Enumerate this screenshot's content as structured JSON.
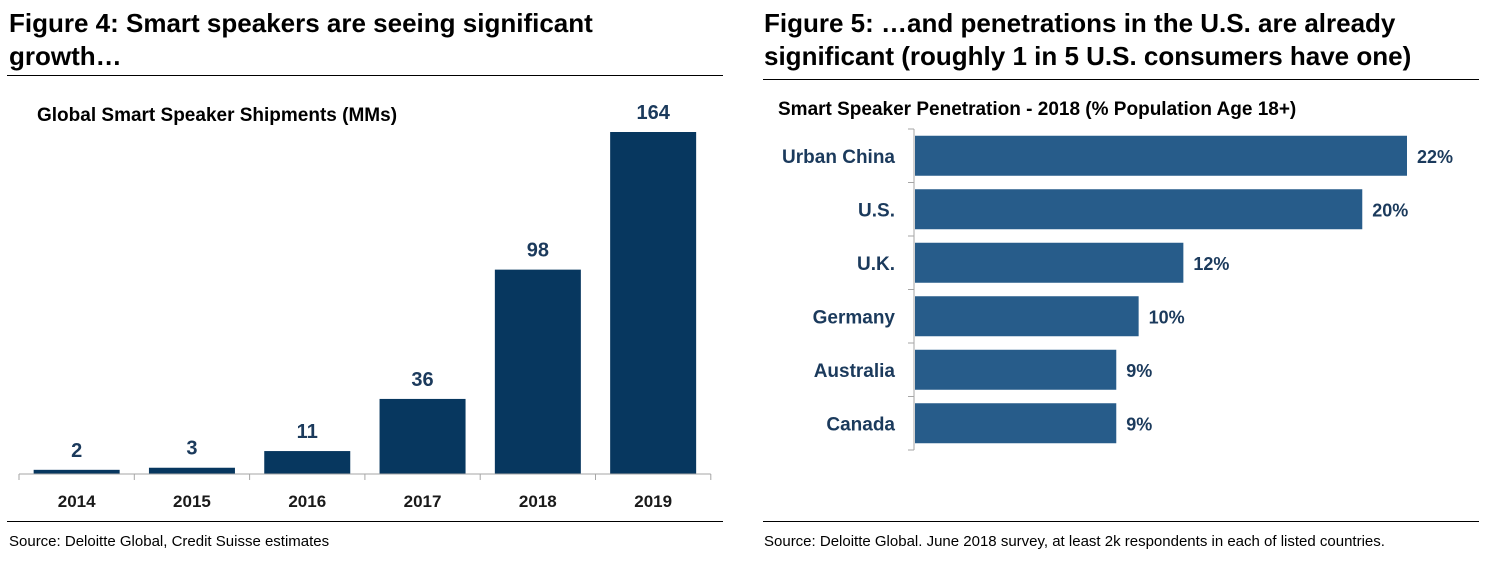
{
  "figure4": {
    "title_line1": "Figure 4: Smart speakers are seeing significant",
    "title_line2": "growth…",
    "source": "Source: Deloitte Global, Credit Suisse estimates"
  },
  "figure5": {
    "title_line1": "Figure 5: …and penetrations in the U.S. are already",
    "title_line2": "significant (roughly 1 in 5 U.S. consumers have one)",
    "source": "Source: Deloitte Global. June 2018 survey, at least 2k respondents in each of listed countries."
  },
  "colors": {
    "bar_dark_navy": "#07375F",
    "bar_steel_blue": "#275C8A",
    "label_navy": "#1B3A5C",
    "axis_gray": "#A6A6A6"
  },
  "chart_data": [
    {
      "type": "bar",
      "orientation": "vertical",
      "title": "Global Smart Speaker Shipments (MMs)",
      "categories": [
        "2014",
        "2015",
        "2016",
        "2017",
        "2018",
        "2019"
      ],
      "values": [
        2,
        3,
        11,
        36,
        98,
        164
      ],
      "value_labels": [
        "2",
        "3",
        "11",
        "36",
        "98",
        "164"
      ],
      "ylim": [
        0,
        164
      ],
      "xlabel": "",
      "ylabel": "",
      "grid": false,
      "legend": "none"
    },
    {
      "type": "bar",
      "orientation": "horizontal",
      "title": "Smart Speaker Penetration - 2018 (% Population Age 18+)",
      "categories": [
        "Urban China",
        "U.S.",
        "U.K.",
        "Germany",
        "Australia",
        "Canada"
      ],
      "values": [
        22,
        20,
        12,
        10,
        9,
        9
      ],
      "value_labels": [
        "22%",
        "20%",
        "12%",
        "10%",
        "9%",
        "9%"
      ],
      "xlim": [
        0,
        22
      ],
      "xlabel": "",
      "ylabel": "",
      "grid": false,
      "legend": "none"
    }
  ]
}
